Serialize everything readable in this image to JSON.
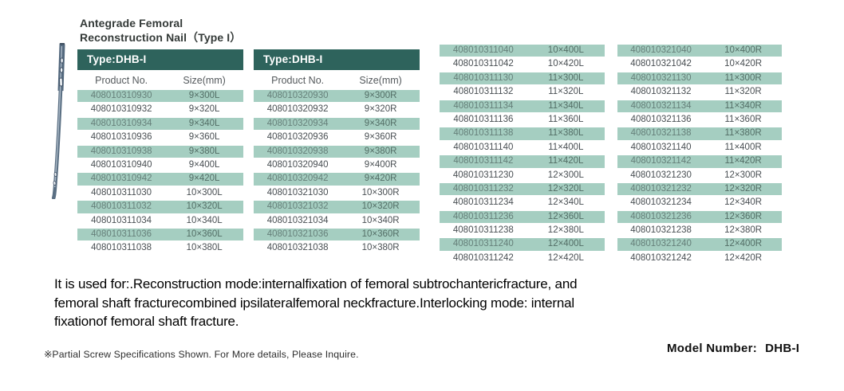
{
  "title": {
    "line1": "Antegrade Femoral",
    "line2": "Reconstruction Nail（Type I）"
  },
  "colors": {
    "header_teal": "#2e635c",
    "row_shade_green": "#a5cec1"
  },
  "tables": [
    {
      "type_label": "Type:DHB-I",
      "columns": [
        "Product No.",
        "Size(mm)"
      ],
      "rows": [
        [
          "408010310930",
          "9×300L"
        ],
        [
          "408010310932",
          "9×320L"
        ],
        [
          "408010310934",
          "9×340L"
        ],
        [
          "408010310936",
          "9×360L"
        ],
        [
          "408010310938",
          "9×380L"
        ],
        [
          "408010310940",
          "9×400L"
        ],
        [
          "408010310942",
          "9×420L"
        ],
        [
          "408010311030",
          "10×300L"
        ],
        [
          "408010311032",
          "10×320L"
        ],
        [
          "408010311034",
          "10×340L"
        ],
        [
          "408010311036",
          "10×360L"
        ],
        [
          "408010311038",
          "10×380L"
        ]
      ]
    },
    {
      "type_label": "Type:DHB-I",
      "columns": [
        "Product No.",
        "Size(mm)"
      ],
      "rows": [
        [
          "408010320930",
          "9×300R"
        ],
        [
          "408010320932",
          "9×320R"
        ],
        [
          "408010320934",
          "9×340R"
        ],
        [
          "408010320936",
          "9×360R"
        ],
        [
          "408010320938",
          "9×380R"
        ],
        [
          "408010320940",
          "9×400R"
        ],
        [
          "408010320942",
          "9×420R"
        ],
        [
          "408010321030",
          "10×300R"
        ],
        [
          "408010321032",
          "10×320R"
        ],
        [
          "408010321034",
          "10×340R"
        ],
        [
          "408010321036",
          "10×360R"
        ],
        [
          "408010321038",
          "10×380R"
        ]
      ]
    },
    {
      "type_label": "",
      "columns": [],
      "rows": [
        [
          "408010311040",
          "10×400L"
        ],
        [
          "408010311042",
          "10×420L"
        ],
        [
          "408010311130",
          "11×300L"
        ],
        [
          "408010311132",
          "11×320L"
        ],
        [
          "408010311134",
          "11×340L"
        ],
        [
          "408010311136",
          "11×360L"
        ],
        [
          "408010311138",
          "11×380L"
        ],
        [
          "408010311140",
          "11×400L"
        ],
        [
          "408010311142",
          "11×420L"
        ],
        [
          "408010311230",
          "12×300L"
        ],
        [
          "408010311232",
          "12×320L"
        ],
        [
          "408010311234",
          "12×340L"
        ],
        [
          "408010311236",
          "12×360L"
        ],
        [
          "408010311238",
          "12×380L"
        ],
        [
          "408010311240",
          "12×400L"
        ],
        [
          "408010311242",
          "12×420L"
        ]
      ]
    },
    {
      "type_label": "",
      "columns": [],
      "rows": [
        [
          "408010321040",
          "10×400R"
        ],
        [
          "408010321042",
          "10×420R"
        ],
        [
          "408010321130",
          "11×300R"
        ],
        [
          "408010321132",
          "11×320R"
        ],
        [
          "408010321134",
          "11×340R"
        ],
        [
          "408010321136",
          "11×360R"
        ],
        [
          "408010321138",
          "11×380R"
        ],
        [
          "408010321140",
          "11×400R"
        ],
        [
          "408010321142",
          "11×420R"
        ],
        [
          "408010321230",
          "12×300R"
        ],
        [
          "408010321232",
          "12×320R"
        ],
        [
          "408010321234",
          "12×340R"
        ],
        [
          "408010321236",
          "12×360R"
        ],
        [
          "408010321238",
          "12×380R"
        ],
        [
          "408010321240",
          "12×400R"
        ],
        [
          "408010321242",
          "12×420R"
        ]
      ]
    }
  ],
  "description": {
    "lines": [
      "It is used for:.Reconstruction mode:internalfixation of femoral subtrochantericfracture, and",
      "femoral shaft fracturecombined ipsilateralfemoral neckfracture.Interlocking mode: internal",
      "fixationof femoral shaft fracture."
    ]
  },
  "footnote": "※Partial Screw Specifications Shown. For More  details, Please Inquire.",
  "model": {
    "label": "Model  Number:",
    "value": "DHB-I"
  }
}
